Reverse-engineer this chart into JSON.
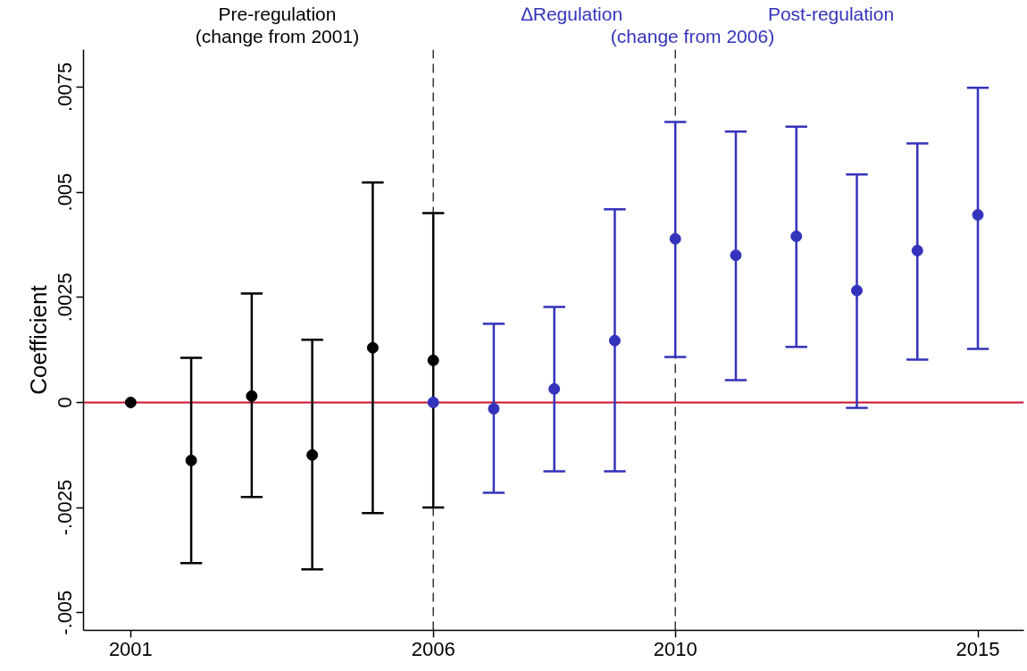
{
  "chart_data": {
    "type": "scatter",
    "ylabel": "Coefficient",
    "annotations": [
      "Pre-regulation",
      "(change from 2001)",
      "∆Regulation",
      "Post-regulation",
      "(change from 2006)"
    ],
    "series": [
      {
        "color": "#000000",
        "x": [
          2001,
          2002,
          2003,
          2004,
          2005,
          2006
        ],
        "values": [
          0,
          -0.00138,
          0.00015,
          -0.00125,
          0.0013,
          0.001
        ],
        "errors": [
          null,
          [
            -0.00382,
            0.00106
          ],
          [
            -0.00225,
            0.00259
          ],
          [
            -0.00397,
            0.00149
          ],
          [
            -0.00263,
            0.00523
          ],
          [
            -0.0025,
            0.0045
          ]
        ]
      },
      {
        "color": "#3333bb",
        "x": [
          2006,
          2007,
          2008,
          2009,
          2010,
          2011,
          2012,
          2013,
          2014,
          2015
        ],
        "values": [
          0,
          -0.00015,
          0.00032,
          0.00147,
          0.00389,
          0.0035,
          0.00395,
          0.00266,
          0.00361,
          0.00446
        ],
        "errors": [
          null,
          [
            -0.00215,
            0.00187
          ],
          [
            -0.00164,
            0.00227
          ],
          [
            -0.00164,
            0.00459
          ],
          [
            0.00108,
            0.00667
          ],
          [
            0.00053,
            0.00644
          ],
          [
            0.00132,
            0.00656
          ],
          [
            -0.00013,
            0.00542
          ],
          [
            0.00102,
            0.00616
          ],
          [
            0.00127,
            0.00748
          ]
        ]
      }
    ],
    "xlim": [
      2000.22,
      2015.76
    ],
    "xticks": [
      2001,
      2006,
      2010,
      2015
    ],
    "ylim": [
      -0.00542,
      0.00839
    ],
    "yticks": [
      {
        "value": -0.005,
        "label": "-.005"
      },
      {
        "value": -0.0025,
        "label": "-.0025"
      },
      0,
      {
        "value": 0.0025,
        "label": ".0025"
      },
      {
        "value": 0.005,
        "label": ".005"
      },
      {
        "value": 0.0075,
        "label": ".0075"
      }
    ],
    "ref_lines": [
      {
        "axis": "x",
        "value": 2006,
        "line_style": "dashed",
        "color": "#000000"
      },
      {
        "axis": "x",
        "value": 2010,
        "line_style": "dashed",
        "color": "#000000"
      },
      {
        "axis": "y",
        "value": 0,
        "color": "#c8102e"
      }
    ],
    "grid": false,
    "marker": "circle"
  }
}
